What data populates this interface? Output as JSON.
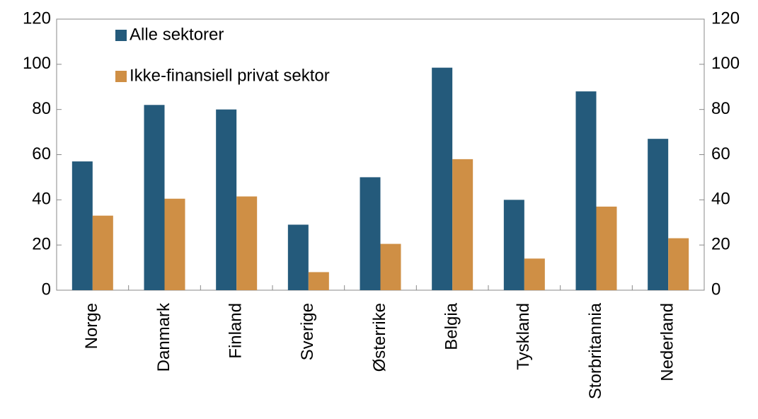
{
  "chart_data": {
    "type": "bar",
    "categories": [
      "Norge",
      "Danmark",
      "Finland",
      "Sverige",
      "Østerrike",
      "Belgia",
      "Tyskland",
      "Storbritannia",
      "Nederland"
    ],
    "series": [
      {
        "name": "Alle sektorer",
        "color": "#245a7b",
        "values": [
          57,
          82,
          80,
          29,
          50,
          98.5,
          40,
          88,
          67
        ]
      },
      {
        "name": "Ikke-finansiell privat sektor",
        "color": "#cf8f45",
        "values": [
          33,
          40.5,
          41.5,
          8,
          20.5,
          58,
          14,
          37,
          23
        ]
      }
    ],
    "ylim": [
      0,
      120
    ],
    "yticks": [
      0,
      20,
      40,
      60,
      80,
      100,
      120
    ],
    "y2lim": [
      0,
      120
    ],
    "y2ticks": [
      0,
      20,
      40,
      60,
      80,
      100,
      120
    ],
    "legend": "upper left",
    "grid": false
  }
}
